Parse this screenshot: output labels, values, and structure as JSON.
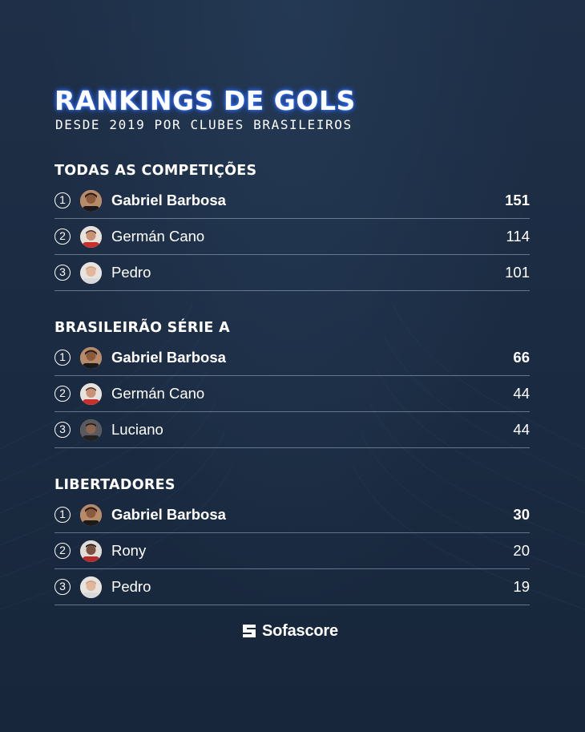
{
  "header": {
    "title": "RANKINGS DE GOLS",
    "subtitle": "DESDE 2019 POR CLUBES BRASILEIROS"
  },
  "sections": [
    {
      "title": "TODAS AS COMPETIÇÕES",
      "rows": [
        {
          "rank": "1",
          "name": "Gabriel Barbosa",
          "goals": "151"
        },
        {
          "rank": "2",
          "name": "Germán Cano",
          "goals": "114"
        },
        {
          "rank": "3",
          "name": "Pedro",
          "goals": "101"
        }
      ]
    },
    {
      "title": "BRASILEIRÃO SÉRIE A",
      "rows": [
        {
          "rank": "1",
          "name": "Gabriel Barbosa",
          "goals": "66"
        },
        {
          "rank": "2",
          "name": "Germán Cano",
          "goals": "44"
        },
        {
          "rank": "3",
          "name": "Luciano",
          "goals": "44"
        }
      ]
    },
    {
      "title": "LIBERTADORES",
      "rows": [
        {
          "rank": "1",
          "name": "Gabriel Barbosa",
          "goals": "30"
        },
        {
          "rank": "2",
          "name": "Rony",
          "goals": "20"
        },
        {
          "rank": "3",
          "name": "Pedro",
          "goals": "19"
        }
      ]
    }
  ],
  "footer": {
    "brand": "Sofascore",
    "brand_icon": "sofascore-logo-icon"
  },
  "colors": {
    "background": "#1b2a40",
    "title_glow": "#2f6bff",
    "divider": "#a0b4cd"
  }
}
